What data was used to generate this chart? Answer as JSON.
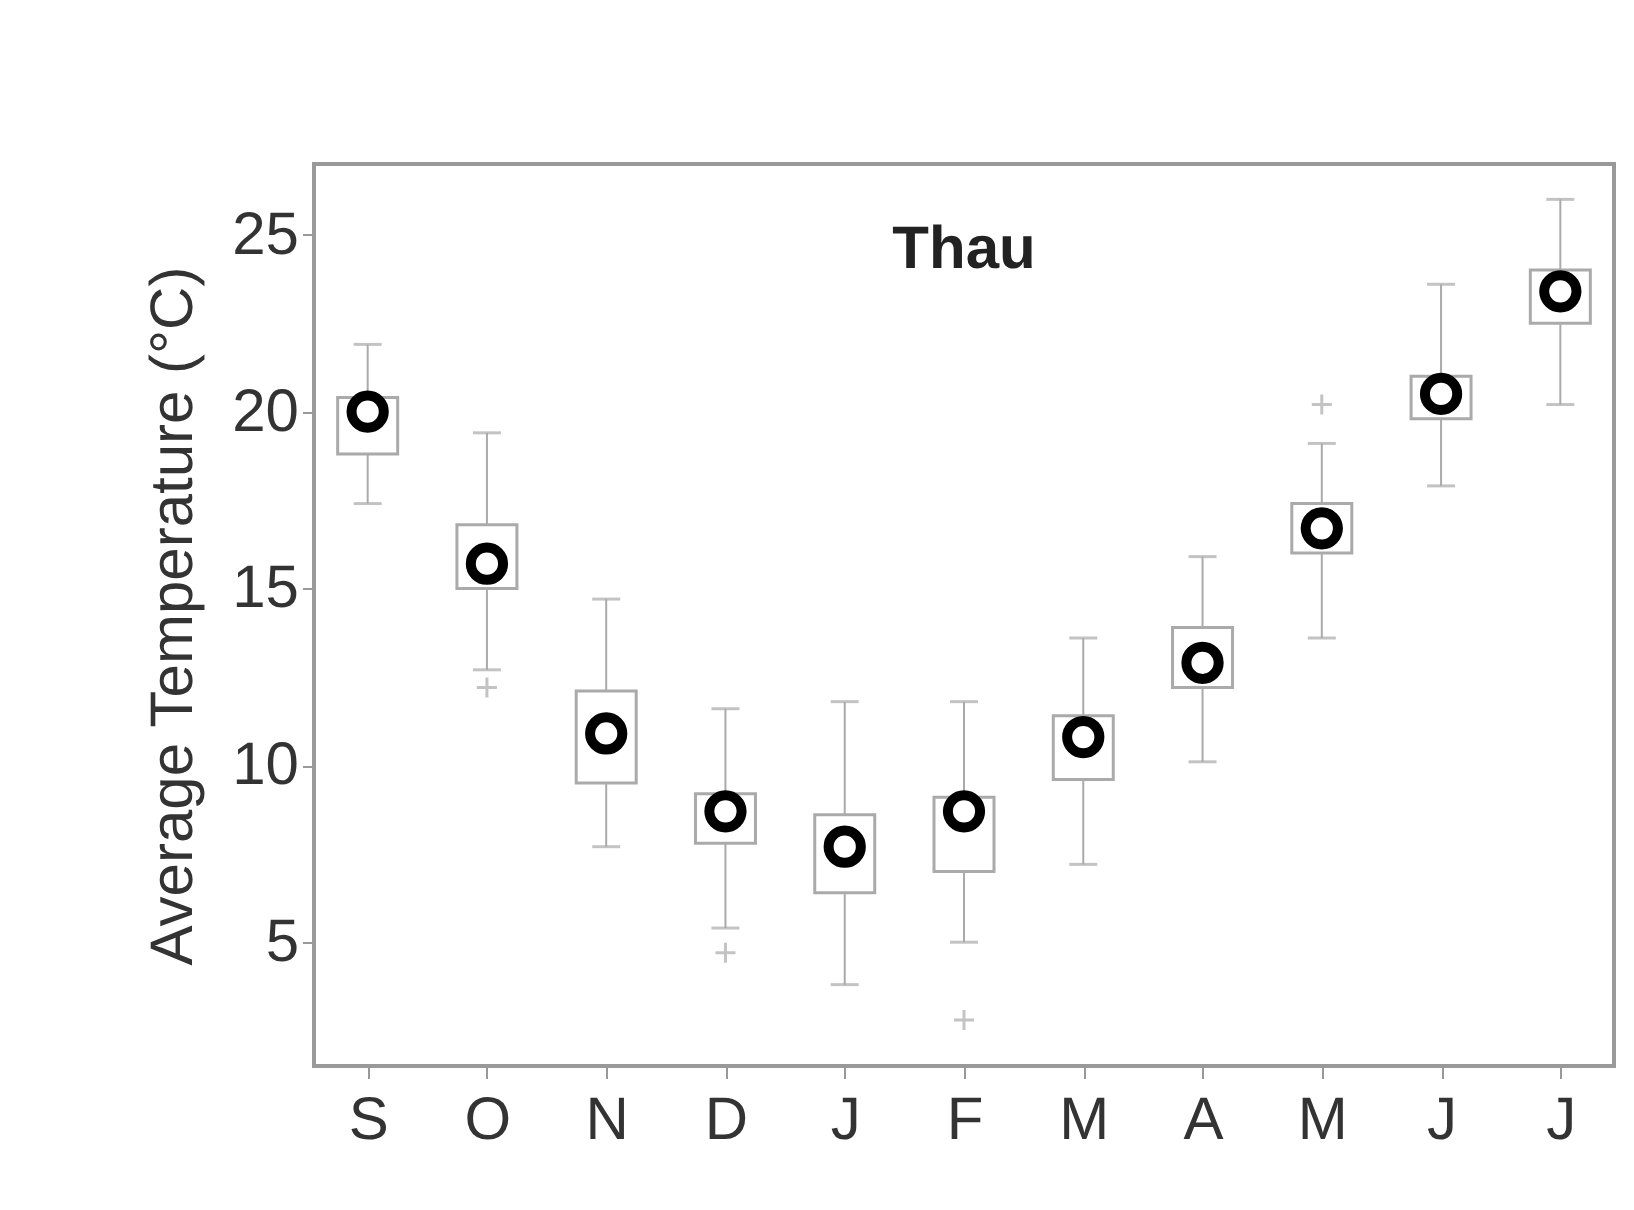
{
  "chart_data": {
    "type": "box",
    "title": "Thau",
    "ylabel": "Average Temperature (°C)",
    "categories": [
      "S",
      "O",
      "N",
      "D",
      "J",
      "F",
      "M",
      "A",
      "M",
      "J",
      "J"
    ],
    "boxes": [
      {
        "low": 17.4,
        "q1": 18.8,
        "median": 20.0,
        "q3": 20.4,
        "high": 21.9
      },
      {
        "low": 12.7,
        "q1": 15.0,
        "median": 15.7,
        "q3": 16.8,
        "high": 19.4,
        "outliers": [
          12.2
        ]
      },
      {
        "low": 7.7,
        "q1": 9.5,
        "median": 10.9,
        "q3": 12.1,
        "high": 14.7
      },
      {
        "low": 5.4,
        "q1": 7.8,
        "median": 8.7,
        "q3": 9.2,
        "high": 11.6,
        "outliers": [
          4.7
        ]
      },
      {
        "low": 3.8,
        "q1": 6.4,
        "median": 7.7,
        "q3": 8.6,
        "high": 11.8
      },
      {
        "low": 5.0,
        "q1": 7.0,
        "median": 8.7,
        "q3": 9.1,
        "high": 11.8,
        "outliers": [
          2.8
        ]
      },
      {
        "low": 7.2,
        "q1": 9.6,
        "median": 10.8,
        "q3": 11.4,
        "high": 13.6
      },
      {
        "low": 10.1,
        "q1": 12.2,
        "median": 12.9,
        "q3": 13.9,
        "high": 15.9
      },
      {
        "low": 13.6,
        "q1": 16.0,
        "median": 16.7,
        "q3": 17.4,
        "high": 19.1,
        "outliers": [
          20.2
        ]
      },
      {
        "low": 17.9,
        "q1": 19.8,
        "median": 20.5,
        "q3": 21.0,
        "high": 23.6
      },
      {
        "low": 20.2,
        "q1": 22.5,
        "median": 23.4,
        "q3": 24.0,
        "high": 26.0
      }
    ],
    "color": "#aaaaaa",
    "marker": "circle",
    "ylim": [
      1.5,
      27
    ],
    "yticks": [
      5,
      10,
      15,
      20,
      25
    ],
    "grid": false
  }
}
